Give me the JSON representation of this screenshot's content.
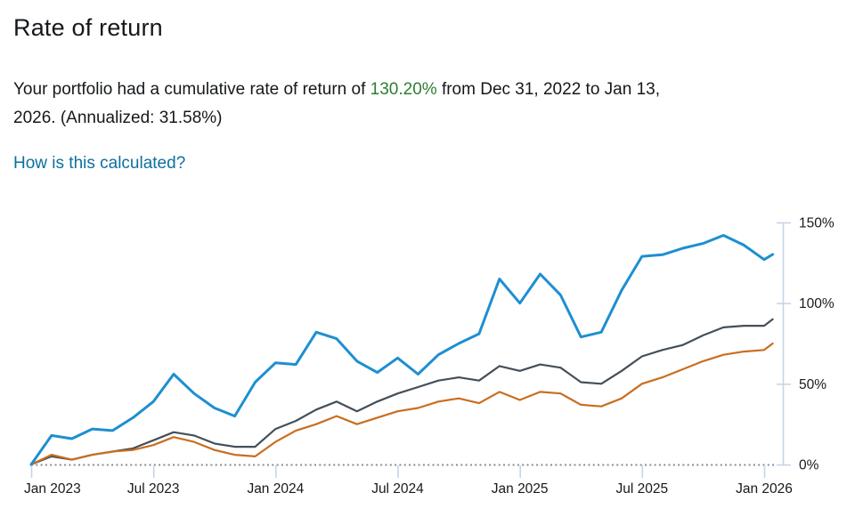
{
  "header": {
    "title": "Rate of return",
    "summary": {
      "before_highlight": "Your portfolio had a cumulative rate of return of ",
      "highlight": "130.20%",
      "after_highlight": " from Dec 31, 2022 to Jan 13,",
      "line2": "2026. (Annualized: 31.58%)"
    },
    "link_label": "How is this calculated?"
  },
  "colors": {
    "highlight_green": "#2e7d32",
    "link_blue": "#0e6f9e",
    "body_text": "#15181b"
  },
  "chart_data": {
    "type": "line",
    "x_unit": "months since Dec 31, 2022 (last point = Jan 13, 2026)",
    "x": [
      0,
      1,
      2,
      3,
      4,
      5,
      6,
      7,
      8,
      9,
      10,
      11,
      12,
      13,
      14,
      15,
      16,
      17,
      18,
      19,
      20,
      21,
      22,
      23,
      24,
      25,
      26,
      27,
      28,
      29,
      30,
      31,
      32,
      33,
      34,
      35,
      36,
      36.42
    ],
    "series": [
      {
        "id": "blue",
        "color": "#1d8fd1",
        "values": [
          0,
          18,
          16,
          22,
          21,
          29,
          39,
          56,
          44,
          35,
          30,
          51,
          63,
          62,
          82,
          78,
          64,
          57,
          66,
          56,
          68,
          75,
          81,
          115,
          100,
          118,
          105,
          79,
          82,
          108,
          129,
          130,
          134,
          137,
          142,
          136,
          127,
          130.2
        ]
      },
      {
        "id": "gray",
        "color": "#454f58",
        "values": [
          0,
          5,
          3,
          6,
          8,
          10,
          15,
          20,
          18,
          13,
          11,
          11,
          22,
          27,
          34,
          39,
          33,
          39,
          44,
          48,
          52,
          54,
          52,
          61,
          58,
          62,
          60,
          51,
          50,
          58,
          67,
          71,
          74,
          80,
          85,
          86,
          86,
          90
        ]
      },
      {
        "id": "orange",
        "color": "#c96e1f",
        "values": [
          0,
          6,
          3,
          6,
          8,
          9,
          12,
          17,
          14,
          9,
          6,
          5,
          14,
          21,
          25,
          30,
          25,
          29,
          33,
          35,
          39,
          41,
          38,
          45,
          40,
          45,
          44,
          37,
          36,
          41,
          50,
          54,
          59,
          64,
          68,
          70,
          71,
          75
        ]
      }
    ],
    "x_axis": {
      "ticks": [
        {
          "t": 0,
          "label": "Jan 2023"
        },
        {
          "t": 6,
          "label": "Jul 2023"
        },
        {
          "t": 12,
          "label": "Jan 2024"
        },
        {
          "t": 18,
          "label": "Jul 2024"
        },
        {
          "t": 24,
          "label": "Jan 2025"
        },
        {
          "t": 30,
          "label": "Jul 2025"
        },
        {
          "t": 36,
          "label": "Jan 2026"
        }
      ]
    },
    "y_axis": {
      "side": "right",
      "range": [
        0,
        150
      ],
      "ticks": [
        {
          "v": 0,
          "label": "0%"
        },
        {
          "v": 50,
          "label": "50%"
        },
        {
          "v": 100,
          "label": "100%"
        },
        {
          "v": 150,
          "label": "150%"
        }
      ]
    },
    "zero_line": true,
    "legend": "none",
    "axis_color": "#c7d4e9",
    "zero_line_color": "#888c92",
    "label_color": "#17191c"
  }
}
